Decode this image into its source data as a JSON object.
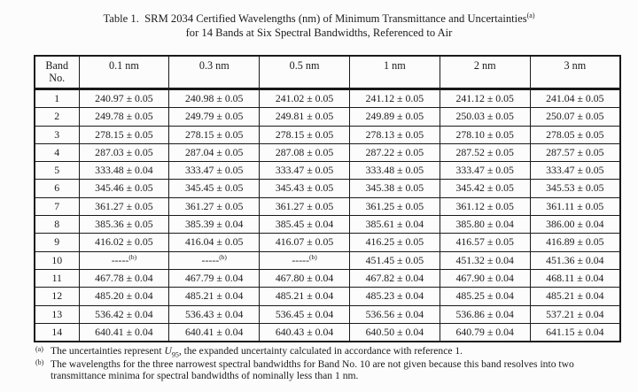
{
  "page": {
    "title_line1_label": "Table 1.",
    "title_line1_text": "SRM 2034 Certified Wavelengths (nm) of Minimum Transmittance and Uncertainties",
    "title_line1_sup": "(a)",
    "title_line2": "for 14 Bands at Six Spectral Bandwidths, Referenced to Air"
  },
  "table": {
    "header": {
      "band_line1": "Band",
      "band_line2": "No.",
      "bandwidths": [
        "0.1 nm",
        "0.3 nm",
        "0.5 nm",
        "1 nm",
        "2 nm",
        "3 nm"
      ]
    },
    "rows": [
      {
        "band": "1",
        "values": [
          "240.97 ± 0.05",
          "240.98 ± 0.05",
          "241.02 ± 0.05",
          "241.12 ± 0.05",
          "241.12 ± 0.05",
          "241.04 ± 0.05"
        ]
      },
      {
        "band": "2",
        "values": [
          "249.78 ± 0.05",
          "249.79 ± 0.05",
          "249.81 ± 0.05",
          "249.89 ± 0.05",
          "250.03 ± 0.05",
          "250.07 ± 0.05"
        ]
      },
      {
        "band": "3",
        "values": [
          "278.15 ± 0.05",
          "278.15 ± 0.05",
          "278.15 ± 0.05",
          "278.13 ± 0.05",
          "278.10 ± 0.05",
          "278.05 ± 0.05"
        ]
      },
      {
        "band": "4",
        "values": [
          "287.03 ± 0.05",
          "287.04 ± 0.05",
          "287.08 ± 0.05",
          "287.22 ± 0.05",
          "287.52 ± 0.05",
          "287.57 ± 0.05"
        ]
      },
      {
        "band": "5",
        "values": [
          "333.48 ± 0.04",
          "333.47 ± 0.05",
          "333.47 ± 0.05",
          "333.48 ± 0.05",
          "333.47 ± 0.05",
          "333.47 ± 0.05"
        ]
      },
      {
        "band": "6",
        "values": [
          "345.46 ± 0.05",
          "345.45 ± 0.05",
          "345.43 ± 0.05",
          "345.38 ± 0.05",
          "345.42 ± 0.05",
          "345.53 ± 0.05"
        ]
      },
      {
        "band": "7",
        "values": [
          "361.27 ± 0.05",
          "361.27 ± 0.05",
          "361.27 ± 0.05",
          "361.25 ± 0.05",
          "361.12 ± 0.05",
          "361.11 ± 0.05"
        ]
      },
      {
        "band": "8",
        "values": [
          "385.36 ± 0.05",
          "385.39 ± 0.04",
          "385.45 ± 0.04",
          "385.61 ± 0.04",
          "385.80 ± 0.04",
          "386.00 ± 0.04"
        ]
      },
      {
        "band": "9",
        "values": [
          "416.02 ± 0.05",
          "416.04 ± 0.05",
          "416.07 ± 0.05",
          "416.25 ± 0.05",
          "416.57 ± 0.05",
          "416.89 ± 0.05"
        ]
      },
      {
        "band": "10",
        "values": [
          {
            "text": "-----",
            "sup": "(b)"
          },
          {
            "text": "-----",
            "sup": "(b)"
          },
          {
            "text": "-----",
            "sup": "(b)"
          },
          "451.45 ± 0.05",
          "451.32 ± 0.04",
          "451.36 ± 0.04"
        ]
      },
      {
        "band": "11",
        "values": [
          "467.78 ± 0.04",
          "467.79 ± 0.04",
          "467.80 ± 0.04",
          "467.82 ± 0.04",
          "467.90 ± 0.04",
          "468.11 ± 0.04"
        ]
      },
      {
        "band": "12",
        "values": [
          "485.20 ± 0.04",
          "485.21 ± 0.04",
          "485.21 ± 0.04",
          "485.23 ± 0.04",
          "485.25 ± 0.04",
          "485.21 ± 0.04"
        ]
      },
      {
        "band": "13",
        "values": [
          "536.42 ± 0.04",
          "536.43 ± 0.04",
          "536.45 ± 0.04",
          "536.56 ± 0.04",
          "536.86 ± 0.04",
          "537.21 ± 0.04"
        ]
      },
      {
        "band": "14",
        "values": [
          "640.41 ± 0.04",
          "640.41 ± 0.04",
          "640.43 ± 0.04",
          "640.50 ± 0.04",
          "640.79 ± 0.04",
          "641.15 ± 0.04"
        ]
      }
    ]
  },
  "footnotes": {
    "a": {
      "marker": "(a)",
      "before": "The uncertainties represent ",
      "symbol": "U",
      "subscript": "95",
      "after": ", the expanded uncertainty calculated in accordance with reference 1."
    },
    "b": {
      "marker": "(b)",
      "text": "The wavelengths for the three narrowest spectral bandwidths for Band No. 10 are not given because this band resolves into two transmittance minima for spectral bandwidths of nominally less than 1 nm."
    }
  },
  "colors": {
    "background": "#fcfcfc",
    "text": "#1b1b1b",
    "border": "#1a1a1a"
  }
}
